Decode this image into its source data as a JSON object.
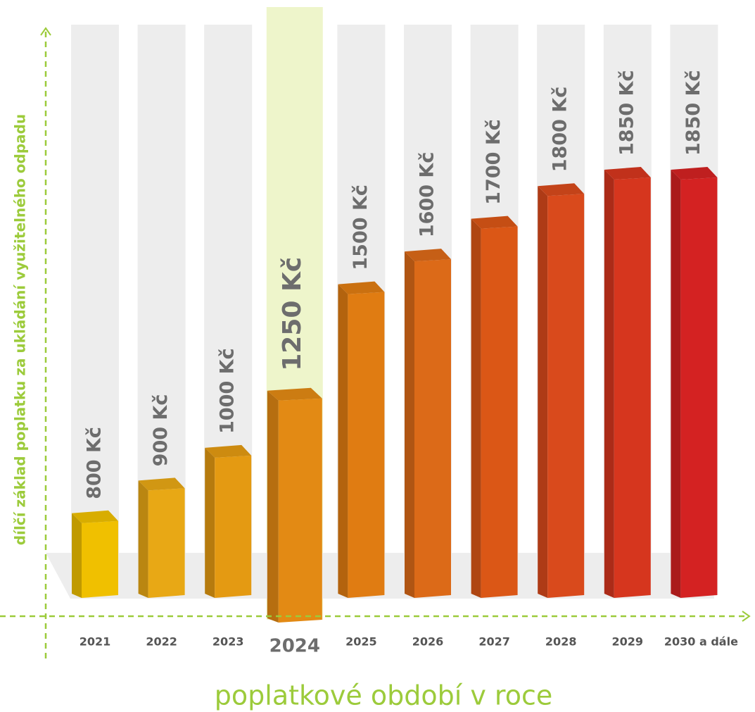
{
  "chart_data": {
    "type": "bar",
    "y_label": "dílčí základ poplatku za ukládání využitelného odpadu",
    "x_label": "poplatkové období v roce",
    "categories": [
      "2021",
      "2022",
      "2023",
      "2024",
      "2025",
      "2026",
      "2027",
      "2028",
      "2029",
      "2030 a dále"
    ],
    "values": [
      800,
      900,
      1000,
      1250,
      1500,
      1600,
      1700,
      1800,
      1850,
      1850
    ],
    "value_labels": [
      "800 Kč",
      "900 Kč",
      "1000 Kč",
      "1250 Kč",
      "1500 Kč",
      "1600 Kč",
      "1700 Kč",
      "1800 Kč",
      "1850 Kč",
      "1850 Kč"
    ],
    "colors": [
      "#f0c000",
      "#e8a815",
      "#e49a12",
      "#e38a14",
      "#e07c12",
      "#dc6a18",
      "#db5716",
      "#d94a1c",
      "#d6361e",
      "#d42222"
    ],
    "ylim": [
      580,
      1900
    ],
    "highlight": 3
  }
}
